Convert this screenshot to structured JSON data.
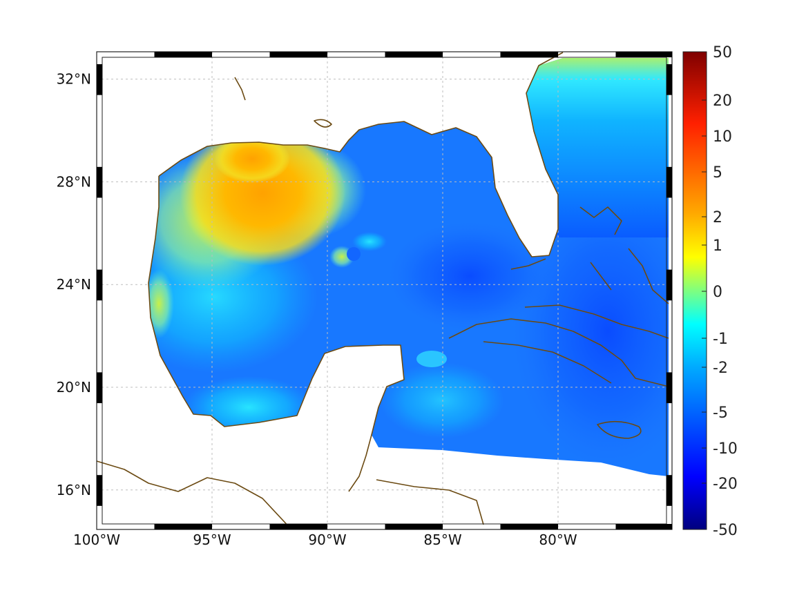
{
  "map": {
    "region": "Gulf of Mexico and Caribbean",
    "lon_range": [
      -100,
      -75
    ],
    "lat_range": [
      14.5,
      33
    ],
    "lon_ticks": [
      {
        "value": -100,
        "label": "100°W"
      },
      {
        "value": -95,
        "label": "95°W"
      },
      {
        "value": -90,
        "label": "90°W"
      },
      {
        "value": -85,
        "label": "85°W"
      },
      {
        "value": -80,
        "label": "80°W"
      }
    ],
    "lat_ticks": [
      {
        "value": 16,
        "label": "16°N"
      },
      {
        "value": 20,
        "label": "20°N"
      },
      {
        "value": 24,
        "label": "24°N"
      },
      {
        "value": 28,
        "label": "28°N"
      },
      {
        "value": 32,
        "label": "32°N"
      }
    ],
    "grid": true,
    "coastline_color": "#6b4a12",
    "land_color": "#ffffff",
    "colormap": "jet"
  },
  "colorbar": {
    "min": -50,
    "max": 50,
    "ticks": [
      {
        "value": 50,
        "label": "50"
      },
      {
        "value": 20,
        "label": "20"
      },
      {
        "value": 10,
        "label": "10"
      },
      {
        "value": 5,
        "label": "5"
      },
      {
        "value": 2,
        "label": "2"
      },
      {
        "value": 1,
        "label": "1"
      },
      {
        "value": 0,
        "label": "0"
      },
      {
        "value": -1,
        "label": "-1"
      },
      {
        "value": -2,
        "label": "-2"
      },
      {
        "value": -5,
        "label": "-5"
      },
      {
        "value": -10,
        "label": "-10"
      },
      {
        "value": -20,
        "label": "-20"
      },
      {
        "value": -50,
        "label": "-50"
      }
    ]
  }
}
